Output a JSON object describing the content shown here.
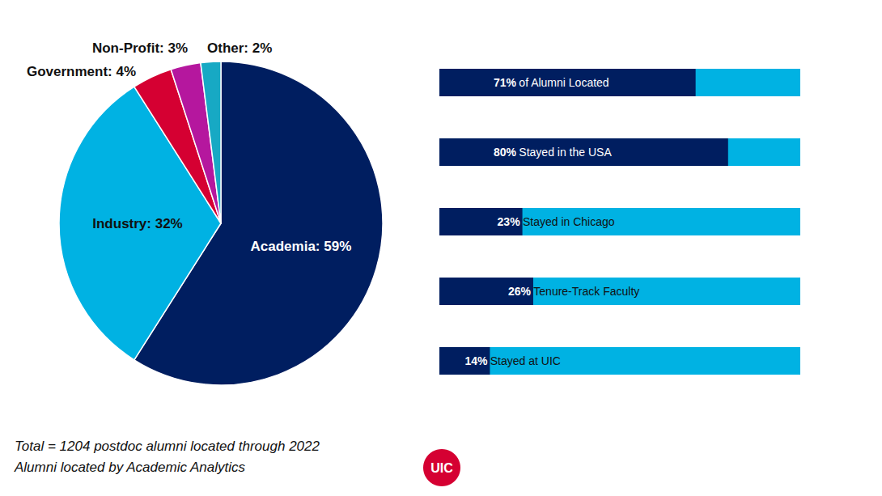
{
  "chart_data": [
    {
      "type": "pie",
      "categories": [
        "Academia",
        "Industry",
        "Government",
        "Non-Profit",
        "Other"
      ],
      "values": [
        59,
        32,
        4,
        3,
        2
      ],
      "value_labels": [
        "Academia: 59%",
        "Industry: 32%",
        "Government: 4%",
        "Non-Profit: 3%",
        "Other: 2%"
      ],
      "colors": [
        "#001E60",
        "#00B2E3",
        "#D50032",
        "#B5179E",
        "#17A9C4"
      ],
      "data_labels": true
    },
    {
      "type": "bar",
      "orientation": "horizontal",
      "categories": [
        "of Alumni Located",
        "Stayed in the USA",
        "Stayed in Chicago",
        "Tenure-Track Faculty",
        "Stayed at UIC"
      ],
      "values": [
        71,
        80,
        23,
        26,
        14
      ],
      "value_labels": [
        "71%",
        "80%",
        "23%",
        "26%",
        "14%"
      ],
      "color": "#001E60",
      "xlim": [
        0,
        100
      ],
      "tick_labels": false,
      "grid": false,
      "data_labels": true
    }
  ],
  "notes": [
    "Total = 1204 postdoc alumni located through 2022",
    "Alumni located by Academic Analytics"
  ],
  "logo": "UIC"
}
